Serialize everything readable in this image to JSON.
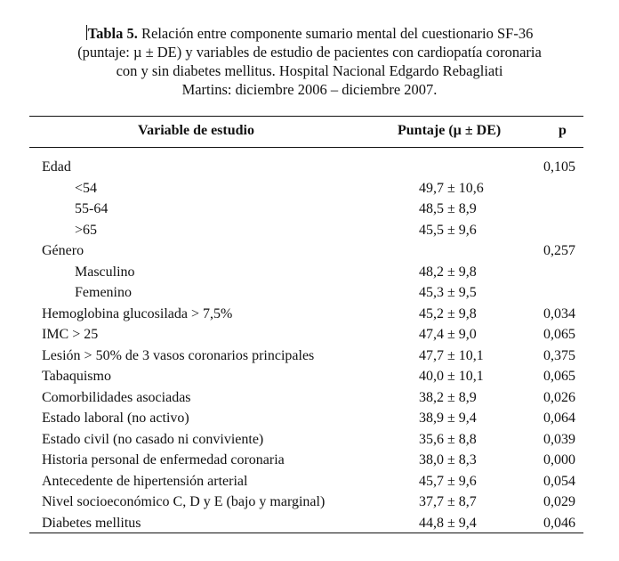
{
  "caption": {
    "title_bold": "Tabla 5.",
    "line1_rest": " Relación entre componente sumario mental del cuestionario SF-36",
    "line2": "(puntaje: µ ± DE) y variables de estudio de pacientes con cardiopatía coronaria",
    "line3": "con y sin diabetes mellitus. Hospital Nacional Edgardo Rebagliati",
    "line4": "Martins: diciembre 2006 – diciembre 2007."
  },
  "table": {
    "headers": {
      "variable": "Variable de estudio",
      "score": "Puntaje (µ ± DE)",
      "p": "p"
    },
    "rows": [
      {
        "label": "Edad",
        "score": "",
        "p": "0,105",
        "indent": false
      },
      {
        "label": "<54",
        "score": "49,7 ± 10,6",
        "p": "",
        "indent": true
      },
      {
        "label": "55-64",
        "score": "48,5 ± 8,9",
        "p": "",
        "indent": true
      },
      {
        "label": ">65",
        "score": "45,5 ± 9,6",
        "p": "",
        "indent": true
      },
      {
        "label": "Género",
        "score": "",
        "p": "0,257",
        "indent": false
      },
      {
        "label": "Masculino",
        "score": "48,2 ± 9,8",
        "p": "",
        "indent": true
      },
      {
        "label": "Femenino",
        "score": "45,3 ± 9,5",
        "p": "",
        "indent": true
      },
      {
        "label": "Hemoglobina glucosilada > 7,5%",
        "score": "45,2 ± 9,8",
        "p": "0,034",
        "indent": false
      },
      {
        "label": "IMC > 25",
        "score": "47,4 ± 9,0",
        "p": "0,065",
        "indent": false
      },
      {
        "label": "Lesión > 50% de 3 vasos coronarios principales",
        "score": "47,7 ± 10,1",
        "p": "0,375",
        "indent": false
      },
      {
        "label": "Tabaquismo",
        "score": "40,0 ± 10,1",
        "p": "0,065",
        "indent": false
      },
      {
        "label": "Comorbilidades asociadas",
        "score": "38,2 ± 8,9",
        "p": "0,026",
        "indent": false
      },
      {
        "label": "Estado laboral (no activo)",
        "score": "38,9 ± 9,4",
        "p": "0,064",
        "indent": false
      },
      {
        "label": "Estado civil (no casado ni conviviente)",
        "score": "35,6 ± 8,8",
        "p": "0,039",
        "indent": false
      },
      {
        "label": "Historia personal de enfermedad coronaria",
        "score": "38,0 ± 8,3",
        "p": "0,000",
        "indent": false
      },
      {
        "label": "Antecedente de hipertensión arterial",
        "score": "45,7 ± 9,6",
        "p": "0,054",
        "indent": false
      },
      {
        "label": "Nivel socioeconómico C, D y E (bajo y marginal)",
        "score": "37,7 ± 8,7",
        "p": "0,029",
        "indent": false
      },
      {
        "label": "Diabetes mellitus",
        "score": "44,8 ± 9,4",
        "p": "0,046",
        "indent": false
      }
    ]
  }
}
